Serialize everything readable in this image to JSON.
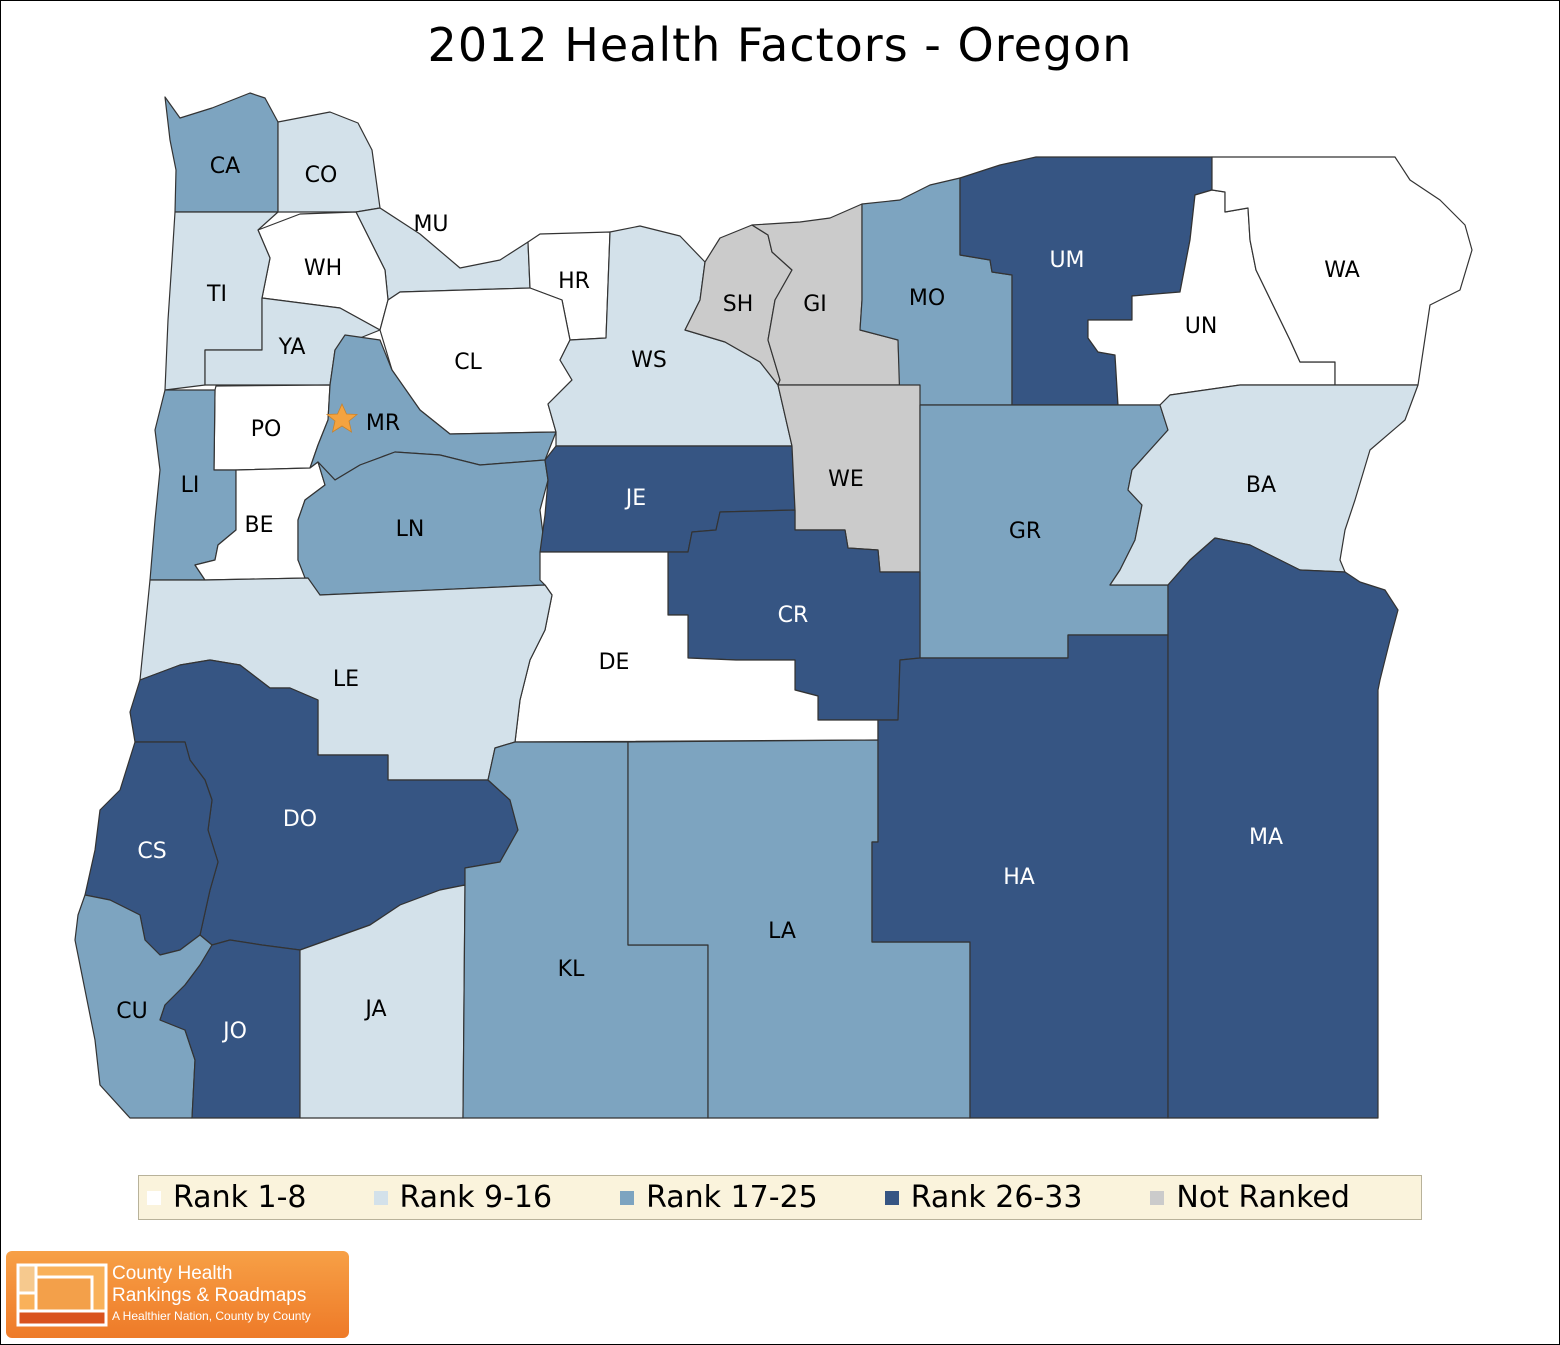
{
  "title": "2012 Health Factors - Oregon",
  "colors": {
    "rank_1_8": "#ffffff",
    "rank_9_16": "#d3e1ea",
    "rank_17_25": "#7da4c0",
    "rank_26_33": "#365583",
    "not_ranked": "#cbcbcb",
    "star": "#f4a340"
  },
  "legend": [
    {
      "label": "Rank 1-8",
      "color": "#ffffff"
    },
    {
      "label": "Rank 9-16",
      "color": "#d3e1ea"
    },
    {
      "label": "Rank 17-25",
      "color": "#7da4c0"
    },
    {
      "label": "Rank 26-33",
      "color": "#365583"
    },
    {
      "label": "Not Ranked",
      "color": "#cbcbcb"
    }
  ],
  "counties": [
    {
      "code": "CA",
      "rank_group": "Rank 17-25"
    },
    {
      "code": "CO",
      "rank_group": "Rank 9-16"
    },
    {
      "code": "MU",
      "rank_group": "Rank 9-16"
    },
    {
      "code": "WH",
      "rank_group": "Rank 1-8"
    },
    {
      "code": "TI",
      "rank_group": "Rank 9-16"
    },
    {
      "code": "YA",
      "rank_group": "Rank 9-16"
    },
    {
      "code": "HR",
      "rank_group": "Rank 1-8"
    },
    {
      "code": "CL",
      "rank_group": "Rank 1-8"
    },
    {
      "code": "WS",
      "rank_group": "Rank 9-16"
    },
    {
      "code": "SH",
      "rank_group": "Not Ranked"
    },
    {
      "code": "GI",
      "rank_group": "Not Ranked"
    },
    {
      "code": "MO",
      "rank_group": "Rank 17-25"
    },
    {
      "code": "UM",
      "rank_group": "Rank 26-33"
    },
    {
      "code": "UN",
      "rank_group": "Rank 1-8"
    },
    {
      "code": "WA",
      "rank_group": "Rank 1-8"
    },
    {
      "code": "PO",
      "rank_group": "Rank 1-8"
    },
    {
      "code": "MR",
      "rank_group": "Rank 17-25"
    },
    {
      "code": "LI",
      "rank_group": "Rank 17-25"
    },
    {
      "code": "BE",
      "rank_group": "Rank 1-8"
    },
    {
      "code": "LN",
      "rank_group": "Rank 17-25"
    },
    {
      "code": "JE",
      "rank_group": "Rank 26-33"
    },
    {
      "code": "WE",
      "rank_group": "Not Ranked"
    },
    {
      "code": "GR",
      "rank_group": "Rank 17-25"
    },
    {
      "code": "BA",
      "rank_group": "Rank 9-16"
    },
    {
      "code": "CR",
      "rank_group": "Rank 26-33"
    },
    {
      "code": "DE",
      "rank_group": "Rank 1-8"
    },
    {
      "code": "LE",
      "rank_group": "Rank 9-16"
    },
    {
      "code": "DO",
      "rank_group": "Rank 26-33"
    },
    {
      "code": "CS",
      "rank_group": "Rank 26-33"
    },
    {
      "code": "CU",
      "rank_group": "Rank 17-25"
    },
    {
      "code": "JO",
      "rank_group": "Rank 26-33"
    },
    {
      "code": "JA",
      "rank_group": "Rank 9-16"
    },
    {
      "code": "KL",
      "rank_group": "Rank 17-25"
    },
    {
      "code": "LA",
      "rank_group": "Rank 17-25"
    },
    {
      "code": "HA",
      "rank_group": "Rank 26-33"
    },
    {
      "code": "MA",
      "rank_group": "Rank 26-33"
    }
  ],
  "logo": {
    "line1": "County Health",
    "line2": "Rankings & Roadmaps",
    "tagline": "A Healthier Nation, County by County"
  }
}
